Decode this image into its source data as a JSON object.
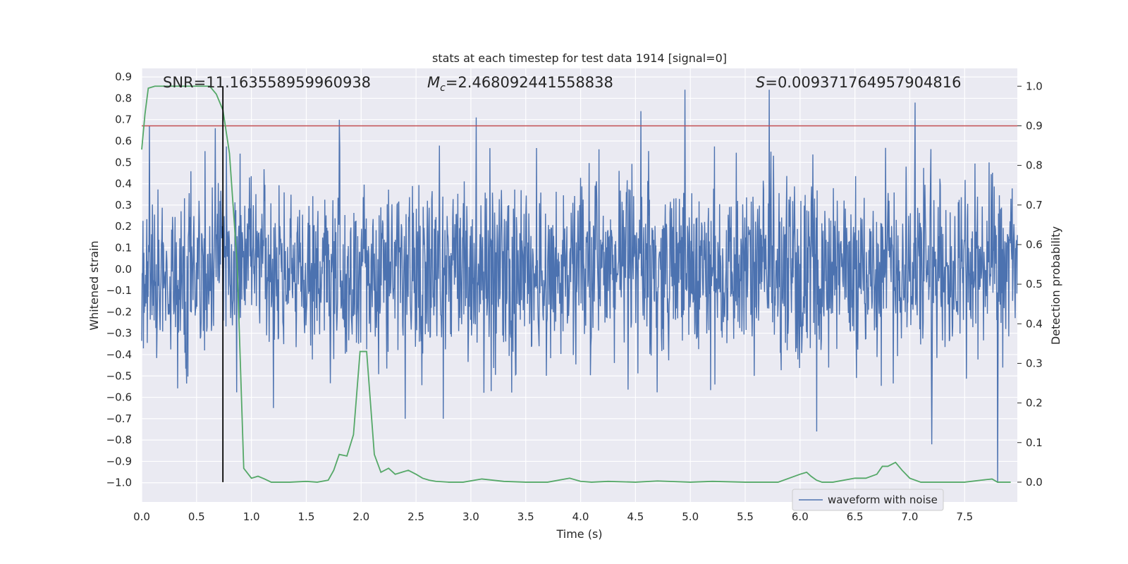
{
  "chart_data": {
    "type": "line",
    "title": "stats at each timestep for test data 1914 [signal=0]",
    "xlabel": "Time (s)",
    "ylabel": "Whitened strain",
    "y2label": "Detection probability",
    "xlim": [
      0,
      7.98
    ],
    "ylim": [
      -1.09,
      0.94
    ],
    "y2lim": [
      -0.05,
      1.045
    ],
    "x_ticks": [
      0.0,
      0.5,
      1.0,
      1.5,
      2.0,
      2.5,
      3.0,
      3.5,
      4.0,
      4.5,
      5.0,
      5.5,
      6.0,
      6.5,
      7.0,
      7.5
    ],
    "x_tick_labels": [
      "0.0",
      "0.5",
      "1.0",
      "1.5",
      "2.0",
      "2.5",
      "3.0",
      "3.5",
      "4.0",
      "4.5",
      "5.0",
      "5.5",
      "6.0",
      "6.5",
      "7.0",
      "7.5"
    ],
    "y_ticks": [
      0.9,
      0.8,
      0.7,
      0.6,
      0.5,
      0.4,
      0.3,
      0.2,
      0.1,
      0.0,
      -0.1,
      -0.2,
      -0.3,
      -0.4,
      -0.5,
      -0.6,
      -0.7,
      -0.8,
      -0.9,
      -1.0
    ],
    "y_tick_labels": [
      "0.9",
      "0.8",
      "0.7",
      "0.6",
      "0.5",
      "0.4",
      "0.3",
      "0.2",
      "0.1",
      "0.0",
      "−0.1",
      "−0.2",
      "−0.3",
      "−0.4",
      "−0.5",
      "−0.6",
      "−0.7",
      "−0.8",
      "−0.9",
      "−1.0"
    ],
    "y2_ticks": [
      1.0,
      0.9,
      0.8,
      0.7,
      0.6,
      0.5,
      0.4,
      0.3,
      0.2,
      0.1,
      0.0
    ],
    "y2_tick_labels": [
      "1.0",
      "0.9",
      "0.8",
      "0.7",
      "0.6",
      "0.5",
      "0.4",
      "0.3",
      "0.2",
      "0.1",
      "0.0"
    ],
    "grid": true,
    "legend_position": "bottom-right",
    "annotations": {
      "snr": "SNR=11.163558959960938",
      "mc_symbol": "M",
      "mc_sub": "c",
      "mc_value": "=2.468092441558838",
      "s_symbol": "S",
      "s_value": "=0.009371764957904816"
    },
    "series": [
      {
        "name": "waveform with noise",
        "axis": "left",
        "color": "#4c72b0",
        "kind": "noise",
        "sample_count": 2048,
        "approx_envelope": [
          -0.45,
          0.45
        ],
        "peaks": [
          {
            "x": 0.07,
            "y": 0.67
          },
          {
            "x": 0.67,
            "y": 0.66
          },
          {
            "x": 1.2,
            "y": -0.65
          },
          {
            "x": 1.8,
            "y": 0.7
          },
          {
            "x": 2.4,
            "y": -0.7
          },
          {
            "x": 2.75,
            "y": -0.7
          },
          {
            "x": 3.05,
            "y": 0.71
          },
          {
            "x": 4.55,
            "y": 0.74
          },
          {
            "x": 4.95,
            "y": 0.84
          },
          {
            "x": 5.72,
            "y": 0.84
          },
          {
            "x": 6.15,
            "y": -0.76
          },
          {
            "x": 7.05,
            "y": 0.78
          },
          {
            "x": 7.2,
            "y": -0.82
          },
          {
            "x": 7.8,
            "y": -1.0
          }
        ]
      },
      {
        "name": "Detection probability",
        "axis": "right",
        "color": "#55a868",
        "x": [
          0.0,
          0.03,
          0.06,
          0.12,
          0.18,
          0.3,
          0.45,
          0.55,
          0.62,
          0.68,
          0.74,
          0.8,
          0.87,
          0.93,
          1.0,
          1.06,
          1.12,
          1.18,
          1.25,
          1.35,
          1.5,
          1.6,
          1.7,
          1.75,
          1.8,
          1.87,
          1.93,
          1.99,
          2.05,
          2.12,
          2.18,
          2.25,
          2.31,
          2.37,
          2.43,
          2.5,
          2.56,
          2.62,
          2.68,
          2.8,
          2.93,
          3.1,
          3.3,
          3.5,
          3.7,
          3.9,
          4.0,
          4.1,
          4.25,
          4.5,
          4.7,
          5.0,
          5.2,
          5.5,
          5.8,
          6.0,
          6.06,
          6.1,
          6.15,
          6.2,
          6.3,
          6.5,
          6.6,
          6.7,
          6.75,
          6.8,
          6.87,
          6.93,
          7.0,
          7.1,
          7.3,
          7.5,
          7.65,
          7.75,
          7.8,
          7.92
        ],
        "values": [
          0.84,
          0.93,
          0.995,
          1.0,
          1.0,
          1.0,
          1.0,
          1.0,
          1.0,
          0.98,
          0.94,
          0.83,
          0.55,
          0.035,
          0.01,
          0.015,
          0.008,
          0.0,
          0.0,
          0.0,
          0.002,
          0.0,
          0.005,
          0.03,
          0.07,
          0.066,
          0.12,
          0.33,
          0.33,
          0.07,
          0.025,
          0.035,
          0.02,
          0.025,
          0.03,
          0.02,
          0.01,
          0.005,
          0.002,
          0.0,
          0.0,
          0.008,
          0.002,
          0.0,
          0.0,
          0.01,
          0.002,
          0.0,
          0.002,
          0.0,
          0.003,
          0.0,
          0.002,
          0.0,
          0.0,
          0.02,
          0.025,
          0.015,
          0.005,
          0.0,
          0.0,
          0.01,
          0.01,
          0.02,
          0.04,
          0.04,
          0.05,
          0.03,
          0.01,
          0.0,
          0.0,
          0.0,
          0.005,
          0.008,
          0.0,
          0.0
        ]
      },
      {
        "name": "threshold",
        "axis": "right",
        "color": "#c44e52",
        "y": 0.9
      },
      {
        "name": "marker",
        "axis": "right",
        "color": "#000000",
        "x": 0.74,
        "y_range": [
          0.0,
          1.0
        ]
      }
    ]
  }
}
